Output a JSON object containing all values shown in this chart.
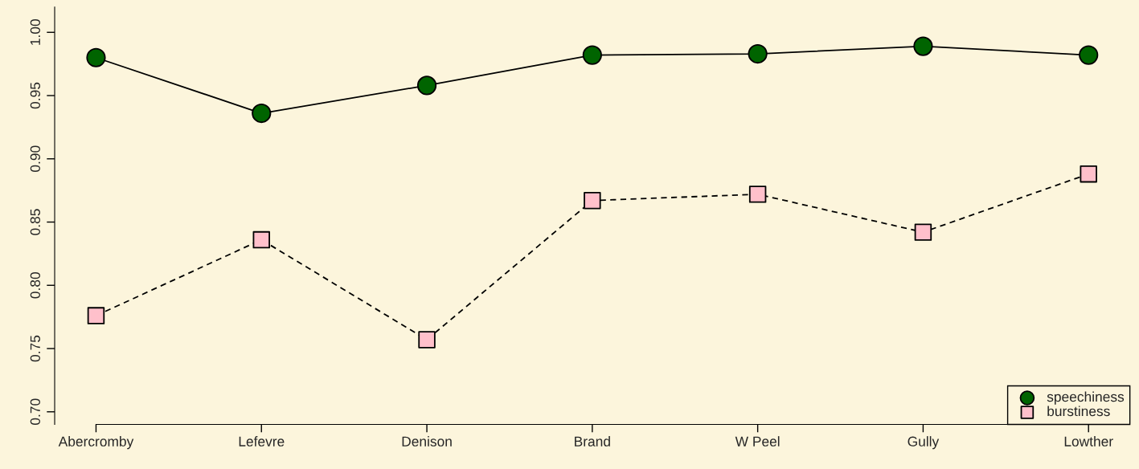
{
  "chart_data": {
    "type": "line",
    "categories": [
      "Abercromby",
      "Lefevre",
      "Denison",
      "Brand",
      "W Peel",
      "Gully",
      "Lowther"
    ],
    "series": [
      {
        "name": "speechiness",
        "color": "#006400",
        "marker": "circle",
        "line_style": "solid",
        "values": [
          0.98,
          0.936,
          0.958,
          0.982,
          0.983,
          0.989,
          0.982
        ]
      },
      {
        "name": "burstiness",
        "color": "#ffc0cb",
        "marker": "square",
        "line_style": "dashed",
        "values": [
          0.776,
          0.836,
          0.757,
          0.867,
          0.872,
          0.842,
          0.888
        ]
      }
    ],
    "ylim": [
      0.69,
      1.02
    ],
    "yticks": [
      {
        "value": 0.7,
        "label": "0.70"
      },
      {
        "value": 0.75,
        "label": "0.75"
      },
      {
        "value": 0.8,
        "label": "0.80"
      },
      {
        "value": 0.85,
        "label": "0.85"
      },
      {
        "value": 0.9,
        "label": "0.90"
      },
      {
        "value": 0.95,
        "label": "0.95"
      },
      {
        "value": 1.0,
        "label": "1.00"
      }
    ],
    "grid": false,
    "legend": "bottom right"
  }
}
